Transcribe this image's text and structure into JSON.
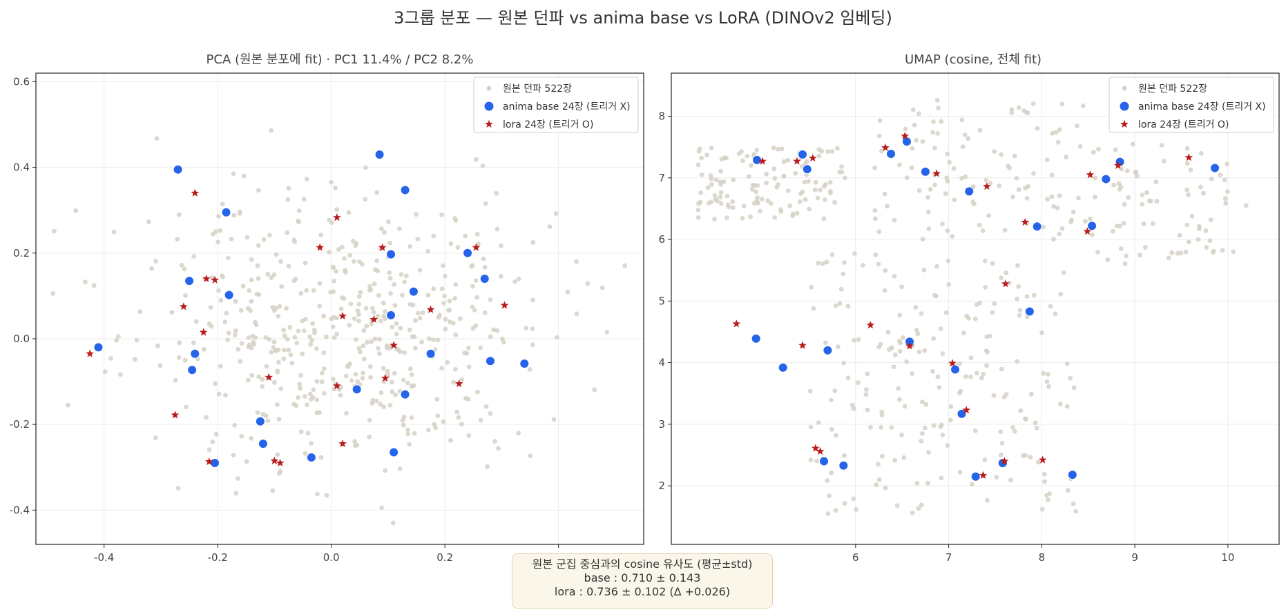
{
  "figure": {
    "title": "3그룹 분포 — 원본 던파 vs anima base vs LoRA  (DINOv2 임베딩)",
    "summary": {
      "line1": "원본 군집 중심과의 cosine 유사도 (평균±std)",
      "line2": "base : 0.710 ± 0.143",
      "line3": "lora : 0.736 ± 0.102   (Δ +0.026)"
    }
  },
  "colors": {
    "original": "#d6d1c6",
    "base": "#2563eb",
    "lora": "#b91c1c",
    "grid": "#ebebeb",
    "frame": "#222222"
  },
  "chart_data": [
    {
      "type": "scatter",
      "title": "PCA (원본 분포에 fit) · PC1 11.4% / PC2 8.2%",
      "xlabel": "",
      "ylabel": "",
      "xlim": [
        -0.52,
        0.55
      ],
      "ylim": [
        -0.48,
        0.62
      ],
      "xticks": [
        -0.4,
        -0.2,
        0.0,
        0.2,
        0.4
      ],
      "xtick_labels": [
        "-0.4",
        "-0.2",
        "0.0",
        "0.2",
        "0.4"
      ],
      "yticks": [
        -0.4,
        -0.2,
        0.0,
        0.2,
        0.4,
        0.6
      ],
      "ytick_labels": [
        "-0.4",
        "-0.2",
        "0.0",
        "0.2",
        "0.4",
        "0.6"
      ],
      "grid": true,
      "legend_position": "top-right",
      "legend": [
        {
          "key": "original",
          "label": "원본 던파 522장",
          "marker": "circle-small"
        },
        {
          "key": "base",
          "label": "anima base 24장 (트리거 X)",
          "marker": "circle"
        },
        {
          "key": "lora",
          "label": "lora 24장 (트리거 O)",
          "marker": "star"
        }
      ],
      "series": [
        {
          "name": "anima base 24장 (트리거 X)",
          "key": "base",
          "points": [
            [
              -0.27,
              0.395
            ],
            [
              0.085,
              0.43
            ],
            [
              0.13,
              0.347
            ],
            [
              -0.185,
              0.295
            ],
            [
              0.105,
              0.197
            ],
            [
              0.24,
              0.2
            ],
            [
              0.27,
              0.14
            ],
            [
              -0.25,
              0.135
            ],
            [
              0.145,
              0.11
            ],
            [
              -0.18,
              0.102
            ],
            [
              0.105,
              0.055
            ],
            [
              -0.41,
              -0.02
            ],
            [
              -0.24,
              -0.035
            ],
            [
              0.175,
              -0.035
            ],
            [
              0.28,
              -0.052
            ],
            [
              0.34,
              -0.058
            ],
            [
              -0.245,
              -0.073
            ],
            [
              0.045,
              -0.118
            ],
            [
              0.13,
              -0.13
            ],
            [
              -0.125,
              -0.193
            ],
            [
              -0.12,
              -0.245
            ],
            [
              0.11,
              -0.265
            ],
            [
              -0.035,
              -0.277
            ],
            [
              -0.205,
              -0.29
            ]
          ]
        },
        {
          "name": "lora 24장 (트리거 O)",
          "key": "lora",
          "points": [
            [
              -0.24,
              0.34
            ],
            [
              0.01,
              0.283
            ],
            [
              -0.02,
              0.213
            ],
            [
              0.09,
              0.213
            ],
            [
              0.255,
              0.213
            ],
            [
              -0.22,
              0.14
            ],
            [
              -0.205,
              0.137
            ],
            [
              -0.26,
              0.075
            ],
            [
              0.305,
              0.078
            ],
            [
              0.175,
              0.068
            ],
            [
              0.02,
              0.053
            ],
            [
              0.075,
              0.045
            ],
            [
              -0.225,
              0.015
            ],
            [
              0.11,
              -0.015
            ],
            [
              -0.425,
              -0.035
            ],
            [
              -0.11,
              -0.09
            ],
            [
              0.095,
              -0.092
            ],
            [
              0.01,
              -0.11
            ],
            [
              0.225,
              -0.105
            ],
            [
              -0.275,
              -0.178
            ],
            [
              0.02,
              -0.245
            ],
            [
              -0.215,
              -0.287
            ],
            [
              -0.1,
              -0.285
            ],
            [
              -0.09,
              -0.29
            ]
          ]
        }
      ]
    },
    {
      "type": "scatter",
      "title": "UMAP (cosine, 전체 fit)",
      "xlabel": "",
      "ylabel": "",
      "xlim": [
        4.02,
        10.55
      ],
      "ylim": [
        1.05,
        8.7
      ],
      "xticks": [
        6,
        7,
        8,
        9,
        10
      ],
      "xtick_labels": [
        "6",
        "7",
        "8",
        "9",
        "10"
      ],
      "yticks": [
        2,
        3,
        4,
        5,
        6,
        7,
        8
      ],
      "ytick_labels": [
        "2",
        "3",
        "4",
        "5",
        "6",
        "7",
        "8"
      ],
      "grid": true,
      "legend_position": "top-right",
      "legend": [
        {
          "key": "original",
          "label": "원본 던파 522장",
          "marker": "circle-small"
        },
        {
          "key": "base",
          "label": "anima base 24장 (트리거 X)",
          "marker": "circle"
        },
        {
          "key": "lora",
          "label": "lora 24장 (트리거 O)",
          "marker": "star"
        }
      ],
      "series": [
        {
          "name": "anima base 24장 (트리거 X)",
          "key": "base",
          "points": [
            [
              4.94,
              7.29
            ],
            [
              5.43,
              7.38
            ],
            [
              5.48,
              7.14
            ],
            [
              6.38,
              7.39
            ],
            [
              6.55,
              7.59
            ],
            [
              6.75,
              7.1
            ],
            [
              7.22,
              6.78
            ],
            [
              7.95,
              6.21
            ],
            [
              8.54,
              6.22
            ],
            [
              8.69,
              6.98
            ],
            [
              8.84,
              7.26
            ],
            [
              9.86,
              7.16
            ],
            [
              7.87,
              4.83
            ],
            [
              4.93,
              4.39
            ],
            [
              5.7,
              4.2
            ],
            [
              5.22,
              3.92
            ],
            [
              6.58,
              4.34
            ],
            [
              7.07,
              3.89
            ],
            [
              7.14,
              3.17
            ],
            [
              5.66,
              2.4
            ],
            [
              5.87,
              2.33
            ],
            [
              7.29,
              2.15
            ],
            [
              7.58,
              2.37
            ],
            [
              8.33,
              2.18
            ]
          ]
        },
        {
          "name": "lora 24장 (트리거 O)",
          "key": "lora",
          "points": [
            [
              5.0,
              7.27
            ],
            [
              5.37,
              7.27
            ],
            [
              5.54,
              7.32
            ],
            [
              6.32,
              7.49
            ],
            [
              6.53,
              7.68
            ],
            [
              6.87,
              7.07
            ],
            [
              7.41,
              6.86
            ],
            [
              8.52,
              7.05
            ],
            [
              8.82,
              7.2
            ],
            [
              9.58,
              7.33
            ],
            [
              7.82,
              6.28
            ],
            [
              8.49,
              6.13
            ],
            [
              7.61,
              5.28
            ],
            [
              4.72,
              4.63
            ],
            [
              6.16,
              4.61
            ],
            [
              5.43,
              4.28
            ],
            [
              6.58,
              4.27
            ],
            [
              7.04,
              3.99
            ],
            [
              7.19,
              3.23
            ],
            [
              5.57,
              2.61
            ],
            [
              5.62,
              2.56
            ],
            [
              7.37,
              2.17
            ],
            [
              7.6,
              2.4
            ],
            [
              8.01,
              2.42
            ]
          ]
        }
      ]
    }
  ]
}
